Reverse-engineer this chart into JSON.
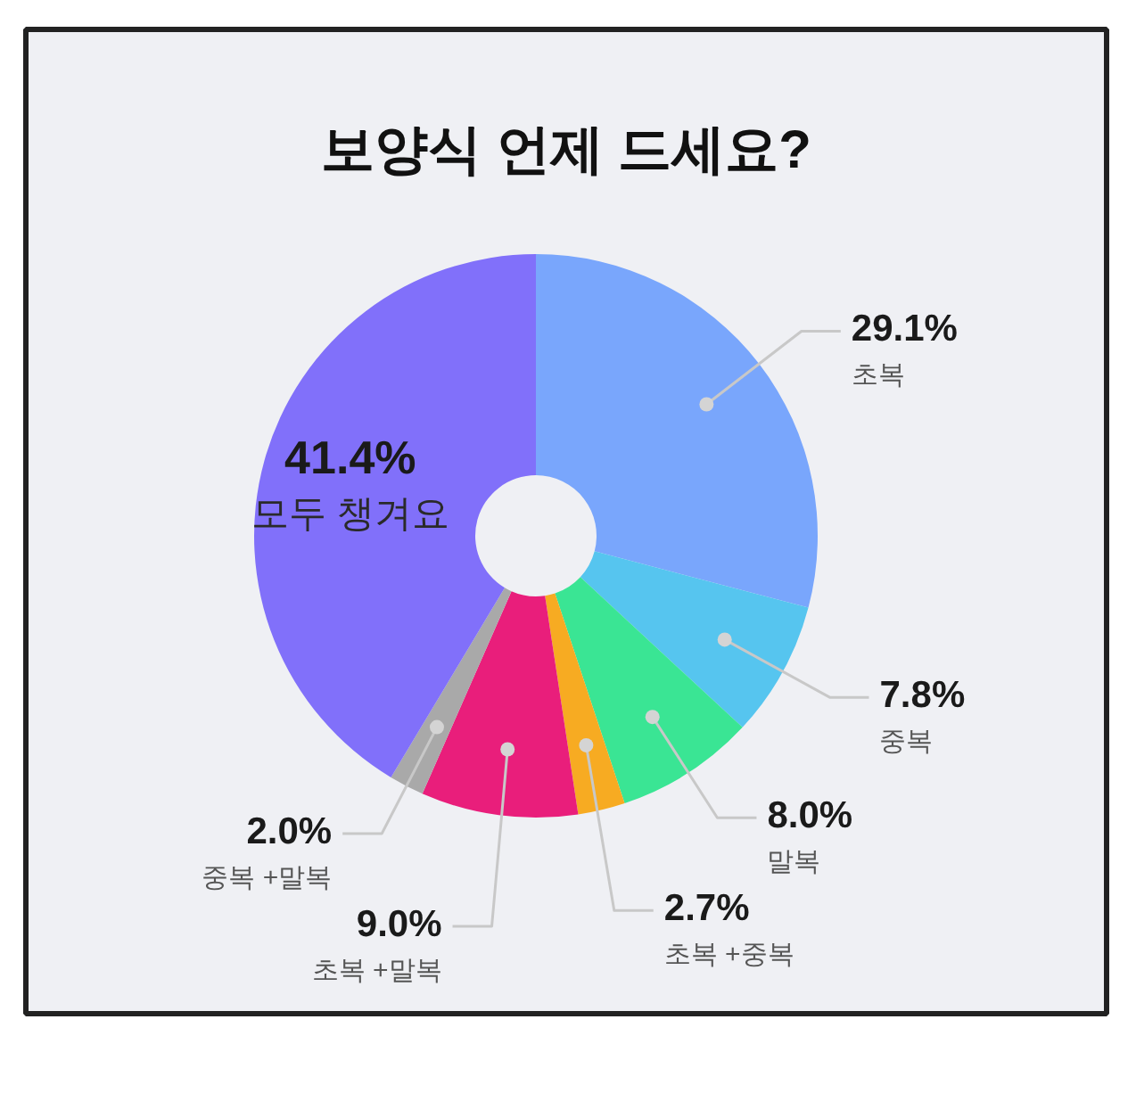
{
  "chart_data": {
    "type": "donut",
    "title": "보양식 언제 드세요?",
    "categories": [
      "초복",
      "중복",
      "말복",
      "초복 +중복",
      "초복 +말복",
      "중복 +말복",
      "모두 챙겨요"
    ],
    "values": [
      29.1,
      7.8,
      8.0,
      2.7,
      9.0,
      2.0,
      41.4
    ],
    "value_labels": [
      "29.1%",
      "7.8%",
      "8.0%",
      "2.7%",
      "9.0%",
      "2.0%",
      "41.4%"
    ],
    "colors": [
      "#79a6fc",
      "#56c5ef",
      "#3ae594",
      "#f7ab22",
      "#e91e7b",
      "#a9a9a9",
      "#8170fa"
    ]
  }
}
